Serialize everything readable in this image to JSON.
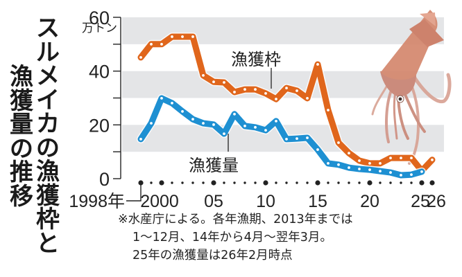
{
  "title": {
    "right_column": [
      "ス",
      "ル",
      "メ",
      "イ",
      "カ",
      "の",
      "漁",
      "獲",
      "枠",
      "と"
    ],
    "left_column": [
      "漁",
      "獲",
      "量",
      "の",
      "推",
      "移"
    ],
    "full_text": "スルメイカの漁獲枠と漁獲量の推移"
  },
  "axes": {
    "y_unit": "万トン",
    "y_ticks": [
      "0",
      "20",
      "40",
      "60"
    ],
    "x_ticks": [
      {
        "year": 1998,
        "label": "1998年"
      },
      {
        "year": 2000,
        "label": "2000"
      },
      {
        "year": 2005,
        "label": "05"
      },
      {
        "year": 2010,
        "label": "10"
      },
      {
        "year": 2015,
        "label": "15"
      },
      {
        "year": 2020,
        "label": "20"
      },
      {
        "year": 2025,
        "label": "25"
      },
      {
        "year": 2026,
        "label": "26"
      }
    ]
  },
  "labels": {
    "quota": "漁獲枠",
    "catch": "漁獲量"
  },
  "colors": {
    "quota": "#E0661C",
    "catch": "#1E90D2",
    "band": "#E4E5E7",
    "axis": "#222222"
  },
  "footnote": {
    "line1": "※水産庁による。各年漁期、2013年までは",
    "line2": "1～12月、14年から4月～翌年3月。",
    "line3": "25年の漁獲量は26年2月時点"
  },
  "chart_data": {
    "type": "line",
    "title": "スルメイカの漁獲枠と漁獲量の推移",
    "xlabel": "年",
    "ylabel": "万トン",
    "ylim": [
      0,
      60
    ],
    "xlim": [
      1998,
      2026
    ],
    "grid": "alternating horizontal bands (50-60, 30-40, 10-20)",
    "legend": "inline labels",
    "x": [
      1998,
      1999,
      2000,
      2001,
      2002,
      2003,
      2004,
      2005,
      2006,
      2007,
      2008,
      2009,
      2010,
      2011,
      2012,
      2013,
      2014,
      2015,
      2016,
      2017,
      2018,
      2019,
      2020,
      2021,
      2022,
      2023,
      2024,
      2025,
      2026
    ],
    "series": [
      {
        "name": "漁獲枠",
        "values": [
          45.1,
          50.0,
          50.0,
          52.8,
          52.8,
          52.8,
          38.4,
          36.0,
          35.8,
          32.2,
          33.2,
          33.2,
          31.7,
          29.6,
          33.7,
          32.7,
          29.9,
          42.5,
          25.5,
          13.4,
          9.5,
          6.7,
          5.7,
          5.7,
          7.7,
          7.7,
          7.7,
          2.9,
          7.0
        ]
      },
      {
        "name": "漁獲量",
        "values": [
          14.7,
          20.6,
          29.9,
          28.1,
          25.0,
          22.1,
          20.6,
          20.1,
          16.7,
          24.0,
          19.6,
          19.1,
          18.0,
          21.4,
          14.7,
          14.9,
          15.2,
          10.8,
          5.7,
          5.2,
          4.1,
          3.6,
          3.3,
          2.8,
          2.3,
          1.3,
          1.5,
          2.6,
          null
        ]
      }
    ],
    "annotations": [
      "※水産庁による。各年漁期、2013年までは1～12月、14年から4月～翌年3月。25年の漁獲量は26年2月時点"
    ]
  }
}
